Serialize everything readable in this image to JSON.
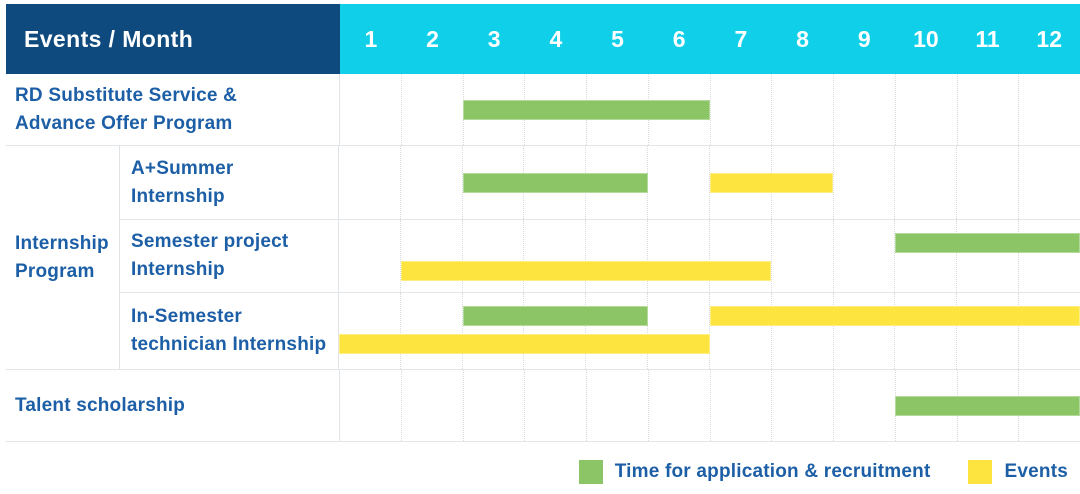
{
  "header": {
    "title": "Events / Month",
    "months": [
      "1",
      "2",
      "3",
      "4",
      "5",
      "6",
      "7",
      "8",
      "9",
      "10",
      "11",
      "12"
    ]
  },
  "colors": {
    "header_navy": "#0e4a7d",
    "header_cyan": "#10cfe9",
    "text_blue": "#1d5fa6",
    "grid_line": "#e3e6e8",
    "application_green": "#8bc566",
    "event_yellow": "#fee43e"
  },
  "chart_data": {
    "type": "gantt",
    "title": "Events / Month",
    "x_unit": "month",
    "x_range": [
      1,
      12
    ],
    "bar_span_semantics": "from/to are month grid lines; a bar covers months from..(to-1) inclusive",
    "kinds": {
      "application": {
        "label": "Time for application & recruitment",
        "color": "#8bc566"
      },
      "event": {
        "label": "Events",
        "color": "#fee43e"
      }
    },
    "rows": [
      {
        "id": "rd-substitute-service",
        "label": "RD Substitute Service & Advance Offer Program",
        "label_lines": [
          "RD Substitute Service &",
          "Advance Offer Program"
        ],
        "bars": [
          {
            "kind": "application",
            "from": 3,
            "to": 7,
            "lane": "center"
          }
        ]
      },
      {
        "id": "internship-program",
        "group_label": "Internship Program",
        "group_label_lines": [
          "Internship",
          "Program"
        ],
        "subrows": [
          {
            "id": "a-plus-summer-internship",
            "label": "A+Summer Internship",
            "label_lines": [
              "A+Summer",
              "Internship"
            ],
            "bars": [
              {
                "kind": "application",
                "from": 3,
                "to": 6,
                "lane": "center"
              },
              {
                "kind": "event",
                "from": 7,
                "to": 9,
                "lane": "center"
              }
            ]
          },
          {
            "id": "semester-project-internship",
            "label": "Semester project Internship",
            "label_lines": [
              "Semester project",
              "Internship"
            ],
            "bars": [
              {
                "kind": "application",
                "from": 10,
                "to": 13,
                "lane": "top"
              },
              {
                "kind": "event",
                "from": 2,
                "to": 8,
                "lane": "bottom"
              }
            ]
          },
          {
            "id": "in-semester-technician-internship",
            "label": "In-Semester technician Internship",
            "label_lines": [
              "In-Semester",
              "technician Internship"
            ],
            "bars": [
              {
                "kind": "application",
                "from": 3,
                "to": 6,
                "lane": "top"
              },
              {
                "kind": "event",
                "from": 7,
                "to": 13,
                "lane": "top"
              },
              {
                "kind": "event",
                "from": 1,
                "to": 7,
                "lane": "bottom"
              }
            ]
          }
        ]
      },
      {
        "id": "talent-scholarship",
        "label": "Talent scholarship",
        "label_lines": [
          "Talent scholarship"
        ],
        "bars": [
          {
            "kind": "application",
            "from": 10,
            "to": 13,
            "lane": "center"
          }
        ]
      }
    ],
    "legend": [
      {
        "kind": "application",
        "label": "Time for application & recruitment"
      },
      {
        "kind": "event",
        "label": "Events"
      }
    ],
    "legend_position": "bottom-right",
    "grid": true
  }
}
